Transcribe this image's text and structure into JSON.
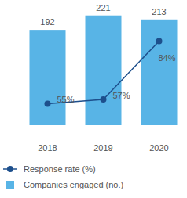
{
  "chart_data": {
    "type": "bar",
    "categories": [
      "2018",
      "2019",
      "2020"
    ],
    "series": [
      {
        "name": "Response rate (%)",
        "type": "line",
        "axis": "y2",
        "color": "#1d4f8c",
        "marker": "circle",
        "values": [
          55,
          57,
          84
        ],
        "value_labels": [
          "55%",
          "57%",
          "84%"
        ]
      },
      {
        "name": "Companies engaged (no.)",
        "type": "bar",
        "color": "#58b4e6",
        "values": [
          192,
          221,
          213
        ]
      }
    ],
    "ylim": [
      0,
      230
    ],
    "y2lim": [
      45,
      98
    ],
    "tick_labels": "x",
    "grid": false,
    "legend": "bottom",
    "data_labels": true
  }
}
